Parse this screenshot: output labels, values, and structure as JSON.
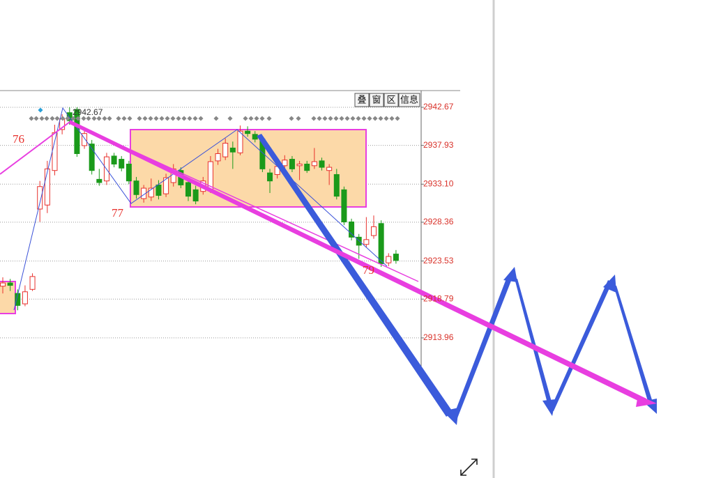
{
  "chart_data": {
    "type": "candlestick",
    "categories": [
      null,
      null,
      null,
      null,
      null,
      null,
      null,
      null,
      null,
      null,
      null,
      null,
      null,
      null,
      null,
      null,
      null,
      null,
      null,
      null,
      null,
      null,
      null,
      null,
      null,
      null,
      null,
      null,
      null,
      null,
      null,
      null,
      null,
      null,
      null,
      null,
      null,
      null,
      null,
      null,
      null,
      null,
      null,
      null,
      null,
      null,
      null,
      null,
      null,
      null,
      null,
      null,
      null,
      null
    ],
    "open": [
      2920.4,
      2920.8,
      2919.5,
      2918.2,
      2920.0,
      2930.0,
      2930.5,
      2934.8,
      2939.9,
      2942.0,
      2942.4,
      2937.9,
      2938.1,
      2933.7,
      2933.5,
      2936.6,
      2936.2,
      2935.6,
      2933.5,
      2931.3,
      2931.5,
      2933.0,
      2931.9,
      2933.3,
      2934.8,
      2933.3,
      2932.4,
      2932.2,
      2932.4,
      2936.0,
      2936.5,
      2937.6,
      2937.0,
      2939.7,
      2939.3,
      2938.7,
      2934.5,
      2934.3,
      2935.4,
      2936.2,
      2935.4,
      2935.6,
      2935.4,
      2936.0,
      2934.8,
      2934.3,
      2932.4,
      2928.4,
      2926.5,
      2925.6,
      2926.7,
      2928.2,
      2923.3,
      2924.4
    ],
    "high": [
      2921.5,
      2921.3,
      2920.0,
      2920.5,
      2922.0,
      2933.5,
      2936.0,
      2940.5,
      2941.8,
      2942.67,
      2942.67,
      2940.2,
      2938.6,
      2935.0,
      2937.0,
      2937.0,
      2936.6,
      2936.0,
      2934.0,
      2933.0,
      2933.8,
      2933.6,
      2934.4,
      2935.6,
      2935.2,
      2933.8,
      2932.9,
      2934.0,
      2936.6,
      2937.5,
      2938.8,
      2938.4,
      2940.4,
      2940.3,
      2939.7,
      2939.1,
      2935.0,
      2935.9,
      2936.7,
      2936.6,
      2936.0,
      2936.0,
      2937.6,
      2936.4,
      2935.6,
      2935.0,
      2932.8,
      2928.8,
      2926.9,
      2929.0,
      2929.2,
      2928.6,
      2924.5,
      2924.9
    ],
    "low": [
      2919.5,
      2919.8,
      2917.4,
      2917.9,
      2919.8,
      2928.4,
      2929.5,
      2934.2,
      2939.3,
      2940.5,
      2936.5,
      2937.5,
      2934.3,
      2932.9,
      2933.0,
      2935.2,
      2934.7,
      2933.1,
      2931.3,
      2930.8,
      2931.0,
      2931.2,
      2931.5,
      2932.8,
      2932.6,
      2931.0,
      2930.6,
      2931.8,
      2932.0,
      2935.5,
      2936.1,
      2935.0,
      2936.7,
      2939.0,
      2938.3,
      2934.6,
      2932.0,
      2933.8,
      2935.0,
      2934.6,
      2933.6,
      2934.5,
      2935.0,
      2934.8,
      2933.0,
      2931.2,
      2928.0,
      2926.1,
      2923.8,
      2925.2,
      2926.3,
      2922.8,
      2922.9,
      2923.2
    ],
    "close": [
      2920.8,
      2920.5,
      2918.0,
      2919.7,
      2921.6,
      2932.8,
      2935.0,
      2939.5,
      2941.2,
      2941.0,
      2936.9,
      2939.4,
      2934.8,
      2933.3,
      2936.5,
      2935.6,
      2935.1,
      2933.5,
      2931.8,
      2932.6,
      2932.6,
      2931.7,
      2933.9,
      2935.0,
      2933.0,
      2931.6,
      2931.0,
      2933.5,
      2935.9,
      2936.9,
      2938.2,
      2937.1,
      2939.7,
      2939.4,
      2938.7,
      2935.0,
      2933.5,
      2935.3,
      2936.1,
      2935.0,
      2935.6,
      2934.8,
      2935.9,
      2935.2,
      2935.2,
      2931.6,
      2928.4,
      2926.5,
      2925.5,
      2926.2,
      2927.8,
      2923.2,
      2924.1,
      2923.6
    ],
    "up_color": "#e8302c",
    "down_color": "#1a9a1a",
    "ylim": [
      2910.05,
      2944.75
    ],
    "yticks": [
      2942.67,
      2937.93,
      {
        "value": 2933.1,
        "label": "2933.10"
      },
      2928.36,
      2923.53,
      2918.79,
      2913.96
    ],
    "grid": true,
    "max_label": 2942.67,
    "wave_labels": [
      "76",
      "77",
      "79"
    ],
    "toolbar": [
      "叠",
      "窗",
      "区",
      "信息"
    ]
  }
}
